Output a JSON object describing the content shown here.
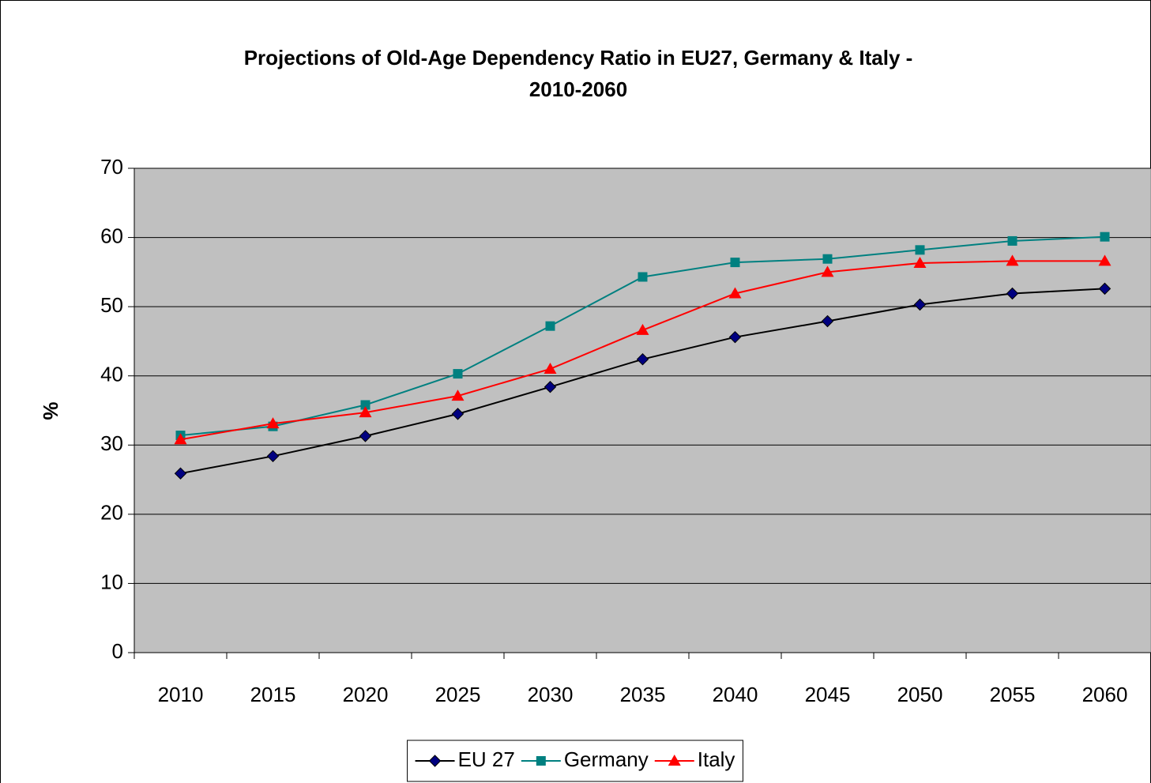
{
  "chart_data": {
    "type": "line",
    "title": "Projections of Old-Age Dependency Ratio in EU27, Germany & Italy -",
    "subtitle": "2010-2060",
    "y_label": "%",
    "categories": [
      "2010",
      "2015",
      "2020",
      "2025",
      "2030",
      "2035",
      "2040",
      "2045",
      "2050",
      "2055",
      "2060"
    ],
    "series": [
      {
        "name": "EU 27",
        "color": "#000080",
        "line_color": "#000000",
        "marker": "diamond",
        "values": [
          25.9,
          28.4,
          31.3,
          34.5,
          38.4,
          42.4,
          45.6,
          47.9,
          50.3,
          51.9,
          52.6
        ]
      },
      {
        "name": "Germany",
        "color": "#008080",
        "line_color": "#008080",
        "marker": "square",
        "values": [
          31.4,
          32.7,
          35.8,
          40.3,
          47.2,
          54.3,
          56.4,
          56.9,
          58.2,
          59.5,
          60.1
        ]
      },
      {
        "name": "Italy",
        "color": "#ff0000",
        "line_color": "#ff0000",
        "marker": "triangle",
        "values": [
          30.8,
          33.1,
          34.7,
          37.1,
          41.0,
          46.6,
          51.9,
          55.0,
          56.3,
          56.6,
          56.6
        ]
      }
    ],
    "ylim": [
      0,
      70
    ],
    "yticks": [
      0,
      10,
      20,
      30,
      40,
      50,
      60,
      70
    ],
    "grid": true,
    "legend": "bottom",
    "plot_background": "#c0c0c0"
  }
}
